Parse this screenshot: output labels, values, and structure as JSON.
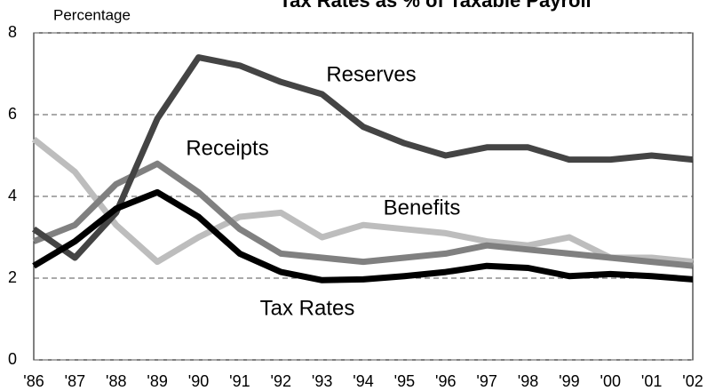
{
  "chart_data": {
    "type": "line",
    "title": "Tax Rates as % of Taxable Payroll",
    "y_label": "Percentage",
    "categories": [
      "'86",
      "'87",
      "'88",
      "'89",
      "'90",
      "'91",
      "'92",
      "'93",
      "'94",
      "'95",
      "'96",
      "'97",
      "'98",
      "'99",
      "'00",
      "'01",
      "'02"
    ],
    "series": [
      {
        "name": "Benefits",
        "color": "#bdbdbd",
        "values": [
          5.4,
          4.6,
          3.3,
          2.4,
          3.0,
          3.5,
          3.6,
          3.0,
          3.3,
          3.2,
          3.1,
          2.9,
          2.8,
          3.0,
          2.5,
          2.5,
          2.4
        ]
      },
      {
        "name": "Receipts",
        "color": "#808080",
        "values": [
          2.9,
          3.3,
          4.3,
          4.8,
          4.1,
          3.2,
          2.6,
          2.5,
          2.4,
          2.5,
          2.6,
          2.8,
          2.7,
          2.6,
          2.5,
          2.4,
          2.3
        ]
      },
      {
        "name": "Reserves",
        "color": "#444444",
        "values": [
          3.2,
          2.5,
          3.6,
          5.9,
          7.4,
          7.2,
          6.8,
          6.5,
          5.7,
          5.3,
          5.0,
          5.2,
          5.2,
          4.9,
          4.9,
          5.0,
          4.9
        ]
      },
      {
        "name": "Tax Rates",
        "color": "#000000",
        "values": [
          2.3,
          2.9,
          3.7,
          4.1,
          3.5,
          2.6,
          2.15,
          1.95,
          1.97,
          2.05,
          2.15,
          2.3,
          2.25,
          2.05,
          2.1,
          2.05,
          1.97
        ]
      }
    ],
    "ylim": [
      0,
      8
    ],
    "yticks": [
      0,
      2,
      4,
      6,
      8
    ],
    "grid": true
  }
}
